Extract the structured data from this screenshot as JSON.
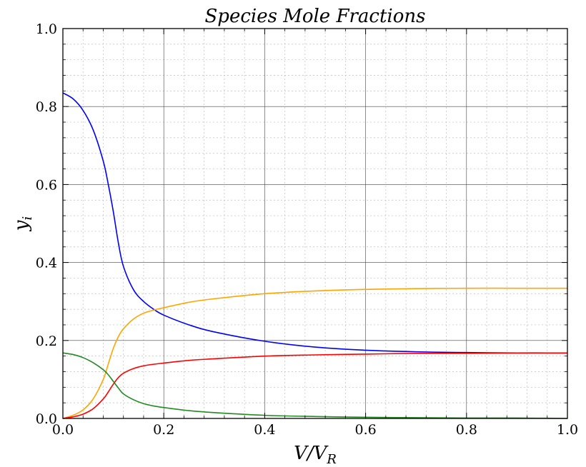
{
  "chart_data": {
    "type": "line",
    "title": "Species Mole Fractions",
    "xlabel": "V/V",
    "xlabel_sub": "R",
    "ylabel": "y",
    "ylabel_sub": "i",
    "xlim": [
      0.0,
      1.0
    ],
    "ylim": [
      0.0,
      1.0
    ],
    "x_ticks": [
      "0.0",
      "0.2",
      "0.4",
      "0.6",
      "0.8",
      "1.0"
    ],
    "y_ticks": [
      "0.0",
      "0.2",
      "0.4",
      "0.6",
      "0.8",
      "1.0"
    ],
    "grid": true,
    "minor_grid": true,
    "series": [
      {
        "color": "#0000ff",
        "x": [
          0.0,
          0.02,
          0.04,
          0.06,
          0.08,
          0.09,
          0.1,
          0.11,
          0.12,
          0.14,
          0.16,
          0.18,
          0.2,
          0.25,
          0.3,
          0.4,
          0.5,
          0.6,
          0.7,
          0.8,
          0.9,
          1.0
        ],
        "y": [
          0.835,
          0.82,
          0.79,
          0.74,
          0.66,
          0.6,
          0.53,
          0.45,
          0.39,
          0.33,
          0.3,
          0.28,
          0.265,
          0.24,
          0.222,
          0.198,
          0.183,
          0.175,
          0.171,
          0.169,
          0.168,
          0.168
        ]
      },
      {
        "color": "#ffa500",
        "x": [
          0.0,
          0.02,
          0.04,
          0.06,
          0.08,
          0.09,
          0.1,
          0.11,
          0.12,
          0.14,
          0.16,
          0.18,
          0.2,
          0.25,
          0.3,
          0.4,
          0.5,
          0.6,
          0.7,
          0.8,
          0.9,
          1.0
        ],
        "y": [
          0.0,
          0.008,
          0.022,
          0.05,
          0.1,
          0.14,
          0.18,
          0.21,
          0.23,
          0.255,
          0.27,
          0.278,
          0.284,
          0.298,
          0.307,
          0.32,
          0.327,
          0.331,
          0.333,
          0.334,
          0.334,
          0.334
        ]
      },
      {
        "color": "#ff0000",
        "x": [
          0.0,
          0.02,
          0.04,
          0.06,
          0.08,
          0.09,
          0.1,
          0.11,
          0.12,
          0.14,
          0.16,
          0.18,
          0.2,
          0.25,
          0.3,
          0.4,
          0.5,
          0.6,
          0.7,
          0.8,
          0.9,
          1.0
        ],
        "y": [
          0.0,
          0.004,
          0.011,
          0.025,
          0.05,
          0.068,
          0.088,
          0.105,
          0.116,
          0.128,
          0.135,
          0.139,
          0.142,
          0.149,
          0.153,
          0.16,
          0.163,
          0.165,
          0.167,
          0.167,
          0.168,
          0.168
        ]
      },
      {
        "color": "#228b22",
        "x": [
          0.0,
          0.02,
          0.04,
          0.06,
          0.08,
          0.09,
          0.1,
          0.11,
          0.12,
          0.14,
          0.16,
          0.18,
          0.2,
          0.25,
          0.3,
          0.4,
          0.5,
          0.6,
          0.7,
          0.8,
          0.9,
          1.0
        ],
        "y": [
          0.168,
          0.164,
          0.156,
          0.143,
          0.125,
          0.112,
          0.095,
          0.078,
          0.063,
          0.048,
          0.038,
          0.032,
          0.028,
          0.02,
          0.015,
          0.008,
          0.005,
          0.003,
          0.002,
          0.001,
          0.001,
          0.0
        ]
      }
    ]
  }
}
